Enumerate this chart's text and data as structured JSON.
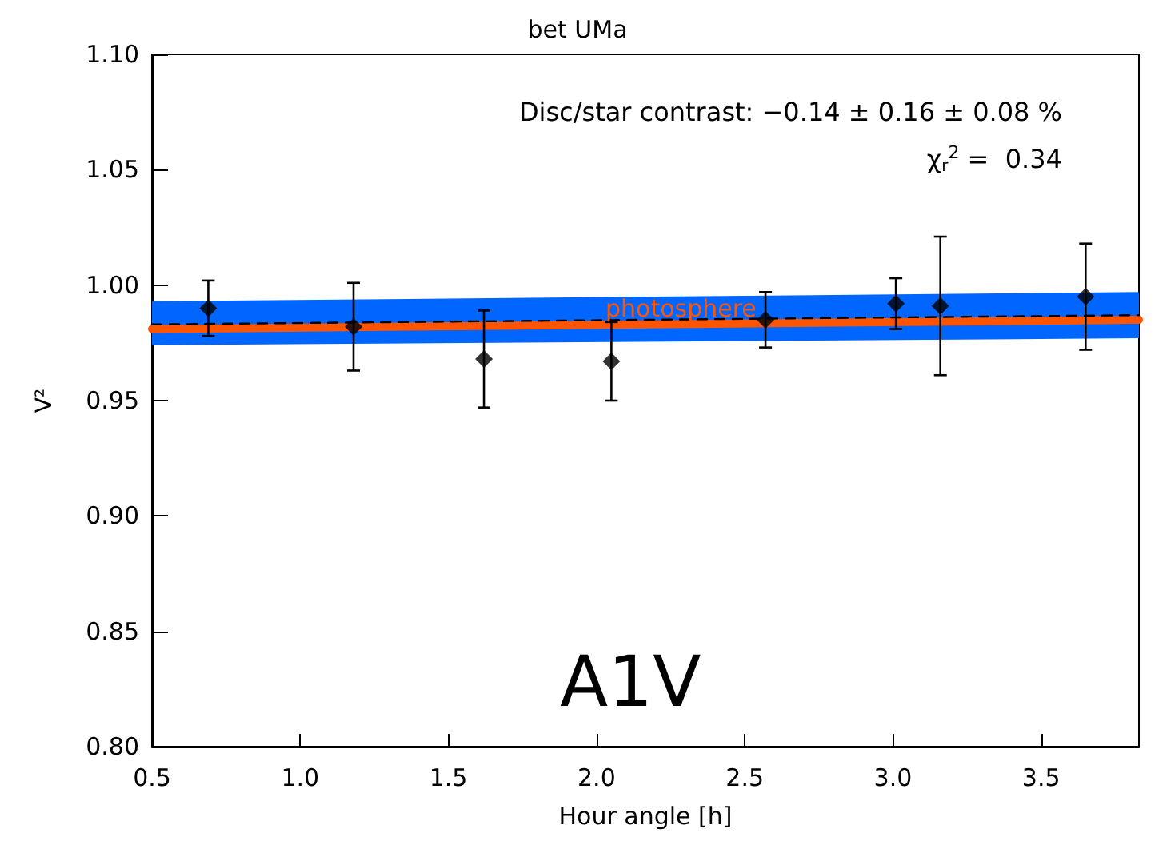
{
  "chart_data": {
    "type": "scatter",
    "title": "bet UMa",
    "xlabel": "Hour angle [h]",
    "ylabel": "V²",
    "xlim": [
      0.5,
      3.83
    ],
    "ylim": [
      0.8,
      1.1
    ],
    "xticks": [
      {
        "value": 0.5,
        "label": "0.5"
      },
      {
        "value": 1,
        "label": "1.0"
      },
      {
        "value": 1.5,
        "label": "1.5"
      },
      {
        "value": 2,
        "label": "2.0"
      },
      {
        "value": 2.5,
        "label": "2.5"
      },
      {
        "value": 3,
        "label": "3.0"
      },
      {
        "value": 3.5,
        "label": "3.5"
      }
    ],
    "yticks": [
      {
        "value": 0.8,
        "label": "0.80"
      },
      {
        "value": 0.85,
        "label": "0.85"
      },
      {
        "value": 0.9,
        "label": "0.90"
      },
      {
        "value": 0.95,
        "label": "0.95"
      },
      {
        "value": 1,
        "label": "1.00"
      },
      {
        "value": 1.05,
        "label": "1.05"
      },
      {
        "value": 1.1,
        "label": "1.10"
      }
    ],
    "grid": false,
    "legend": false,
    "annotations": [
      "Disc/star contrast: −0.14 ± 0.16 ± 0.08 %",
      "χ$_{r}$$^{2}$ =  0.34",
      "A1V"
    ],
    "series": [
      {
        "type": "line",
        "name": "photosphere",
        "color": "#ff5500",
        "x": [
          0.5,
          3.83
        ],
        "values": [
          0.981,
          0.985
        ],
        "lower": [
          0.974,
          0.977
        ],
        "upper": [
          0.993,
          0.997
        ],
        "line_style": "solid",
        "marker": "none"
      },
      {
        "type": "line",
        "color": "#000000",
        "x": [
          0.5,
          3.83
        ],
        "values": [
          0.983,
          0.987
        ],
        "line_style": "dashed",
        "marker": "none"
      },
      {
        "color": "#000000",
        "marker": "diamond",
        "x": [
          0.69,
          1.18,
          1.62,
          2.05,
          2.57,
          3.01,
          3.16,
          3.65
        ],
        "values": [
          0.99,
          0.982,
          0.968,
          0.967,
          0.985,
          0.992,
          0.991,
          0.995
        ],
        "errors": [
          0.012,
          0.019,
          0.021,
          0.017,
          0.012,
          0.011,
          0.03,
          0.023
        ]
      }
    ]
  }
}
